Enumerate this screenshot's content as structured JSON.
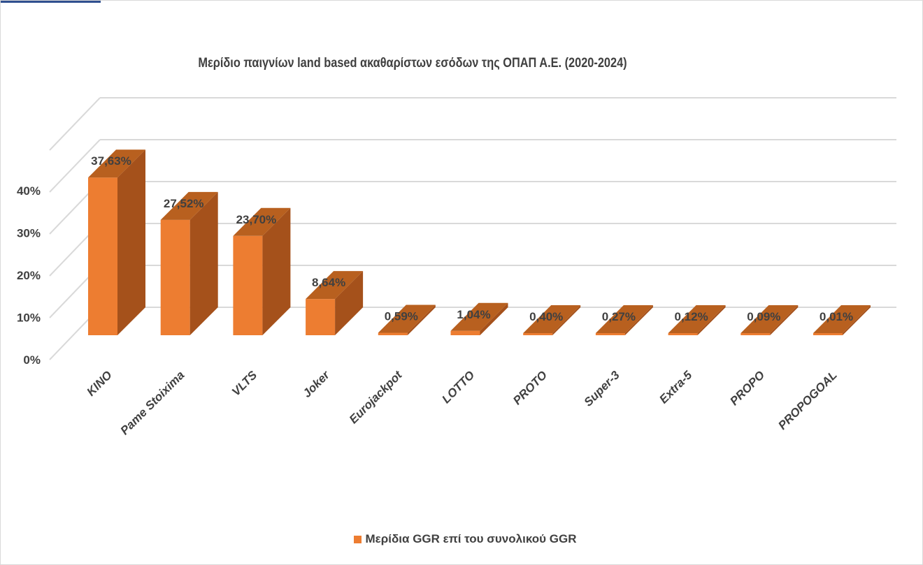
{
  "colors": {
    "front": "#ED7D31",
    "side": "#A5511B",
    "top": "#B8601F",
    "grid": "#D9D9D9",
    "text": "#404040"
  },
  "chart_data": {
    "type": "bar",
    "title": "Μερίδιο παιγνίων land based  ακαθαρίστων εσόδων της ΟΠΑΠ  Α.Ε. (2020-2024)",
    "categories": [
      "KINO",
      "Pame Stoixima",
      "VLTS",
      "Joker",
      "Eurojackpot",
      "LOTTO",
      "PROTO",
      "Super-3",
      "Extra-5",
      "PROPO",
      "PROPOGOAL"
    ],
    "series": [
      {
        "name": "Μερίδια GGR επί του συνολικού GGR",
        "values": [
          37.63,
          27.52,
          23.7,
          8.64,
          0.59,
          1.04,
          0.4,
          0.27,
          0.12,
          0.09,
          0.01
        ]
      }
    ],
    "data_labels": [
      "37,63%",
      "27,52%",
      "23,70%",
      "8,64%",
      "0,59%",
      "1,04%",
      "0,40%",
      "0,27%",
      "0,12%",
      "0,09%",
      "0,01%"
    ],
    "yticks": [
      "0%",
      "10%",
      "20%",
      "30%",
      "40%"
    ],
    "ylim": [
      0,
      50
    ],
    "grid": true,
    "legend_position": "bottom",
    "three_d": true
  }
}
